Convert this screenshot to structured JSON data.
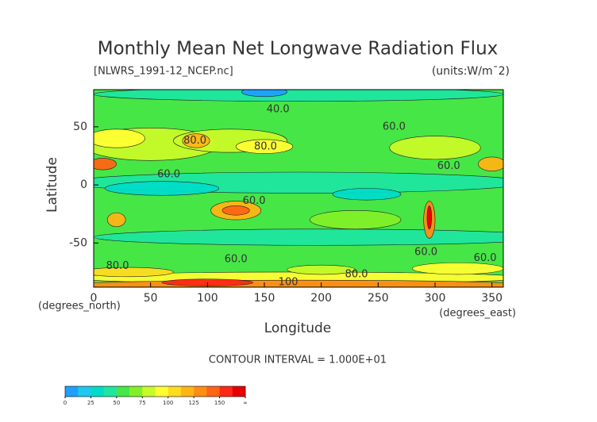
{
  "chart_data": {
    "type": "contour",
    "title": "Monthly Mean Net Longwave Radiation Flux",
    "subtitle": "[NLWRS_1991-12_NCEP.nc]",
    "units": "(units:W/m¯2)",
    "x_label": "Longitude",
    "y_label": "Latitude",
    "x_units": "(degrees_east)",
    "y_units": "(degrees_north)",
    "footer": "CONTOUR INTERVAL = 1.000E+01",
    "xlim": [
      0,
      360
    ],
    "ylim": [
      -88,
      82
    ],
    "xticks": [
      0,
      50,
      100,
      150,
      200,
      250,
      300,
      350
    ],
    "yticks": [
      -50,
      0,
      50
    ],
    "annotations": [
      {
        "text": "40.0",
        "x": 162,
        "y": 65
      },
      {
        "text": "60.0",
        "x": 264,
        "y": 50
      },
      {
        "text": "80.0",
        "x": 151,
        "y": 33
      },
      {
        "text": "80.0",
        "x": 89,
        "y": 38
      },
      {
        "text": "60.0",
        "x": 66,
        "y": 9
      },
      {
        "text": "60.0",
        "x": 312,
        "y": 16
      },
      {
        "text": "60.0",
        "x": 141,
        "y": -14
      },
      {
        "text": "60.0",
        "x": 125,
        "y": -64
      },
      {
        "text": "60.0",
        "x": 292,
        "y": -58
      },
      {
        "text": "60.0",
        "x": 344,
        "y": -63
      },
      {
        "text": "80.0",
        "x": 21,
        "y": -70
      },
      {
        "text": "80.0",
        "x": 231,
        "y": -77
      },
      {
        "text": "100",
        "x": 171,
        "y": -84
      }
    ],
    "colorbar": {
      "ticks": [
        0,
        25,
        50,
        75,
        100,
        125,
        150,
        {
          "value": 175,
          "label": "∞"
        }
      ],
      "colors": [
        "#1ea0ff",
        "#1ec8f0",
        "#00dcc8",
        "#1ee6a0",
        "#46e646",
        "#82f028",
        "#c8fa28",
        "#ffff32",
        "#ffdc1e",
        "#ffb414",
        "#ff8c14",
        "#ff6414",
        "#ff2814",
        "#e60000"
      ]
    }
  }
}
